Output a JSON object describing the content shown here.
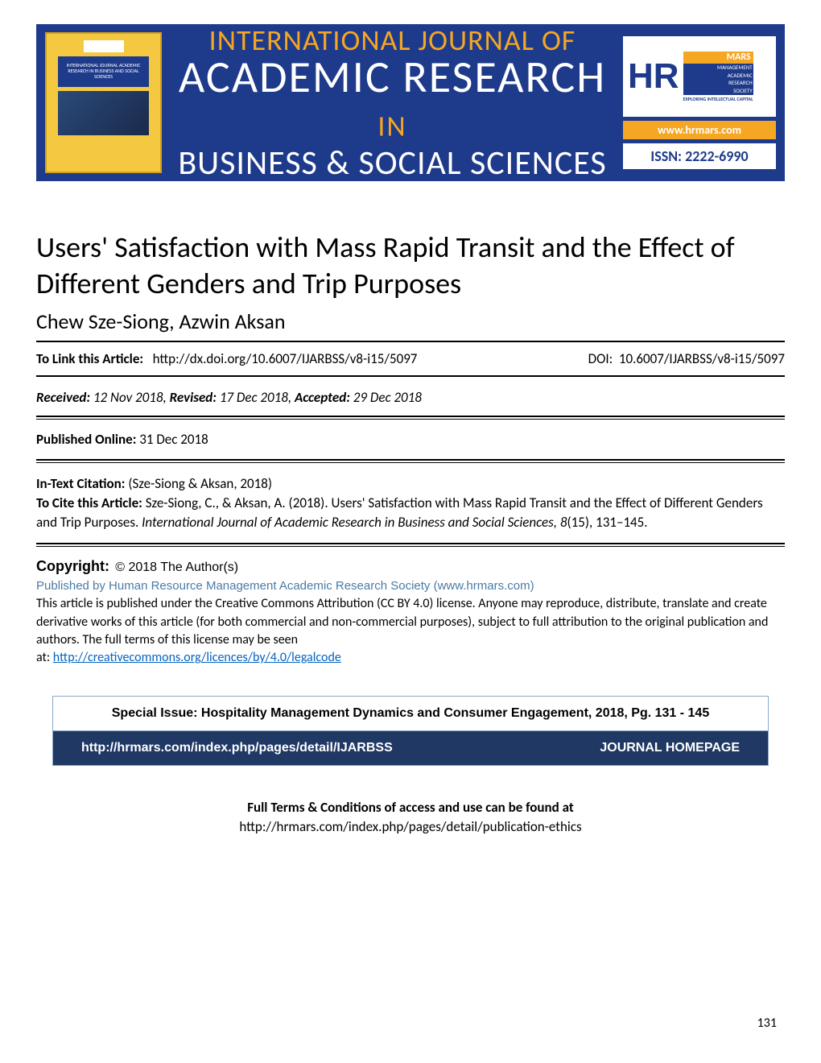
{
  "banner": {
    "line1": "INTERNATIONAL JOURNAL OF",
    "line2_main": "ACADEMIC RESEARCH",
    "line2_suffix": "IN",
    "line3": "BUSINESS & SOCIAL SCIENCES",
    "cover_title": "INTERNATIONAL JOURNAL ACADEMIC RESEARCH IN BUSINESS AND SOCIAL SCIENCES",
    "hr": "HR",
    "mars": "MARS",
    "mars_sub1": "MANAGEMENT",
    "mars_sub2": "ACADEMIC",
    "mars_sub3": "RESEARCH",
    "mars_sub4": "SOCIETY",
    "mars_tag": "EXPLORING INTELLECTUAL CAPITAL",
    "url": "www.hrmars.com",
    "issn": "ISSN: 2222-6990"
  },
  "article": {
    "title": "Users' Satisfaction with Mass Rapid Transit and the Effect of Different Genders and Trip Purposes",
    "authors": "Chew Sze-Siong, Azwin Aksan"
  },
  "link": {
    "label": "To Link this Article:",
    "url": "http://dx.doi.org/10.6007/IJARBSS/v8-i15/5097",
    "doi_label": "DOI:",
    "doi": "10.6007/IJARBSS/v8-i15/5097"
  },
  "dates": {
    "received_label": "Received:",
    "received": "12 Nov 2018,",
    "revised_label": "Revised:",
    "revised": "17 Dec 2018,",
    "accepted_label": "Accepted:",
    "accepted": "29 Dec 2018"
  },
  "published": {
    "label": "Published Online:",
    "date": "31 Dec 2018"
  },
  "citation": {
    "intext_label": "In-Text Citation:",
    "intext": "(Sze-Siong & Aksan, 2018)",
    "cite_label": "To Cite this Article:",
    "cite_text": "Sze-Siong, C., & Aksan, A. (2018). Users' Satisfaction with Mass Rapid Transit and the Effect of Different Genders and Trip Purposes.",
    "journal": "International Journal of Academic Research in Business and Social Sciences",
    "vol": ", 8",
    "issue_pages": "(15), 131–145."
  },
  "copyright": {
    "label": "Copyright:",
    "year": "© 2018 The Author(s)",
    "publisher": "Published by Human Resource Management Academic Research Society (www.hrmars.com)",
    "text": "This article is published under the Creative Commons Attribution (CC BY 4.0) license. Anyone may reproduce, distribute, translate and create derivative works of this article (for both commercial and non-commercial purposes), subject to full attribution to the original publication and authors. The full terms of this license may be seen",
    "at": "at:",
    "link": "http://creativecommons.org/licences/by/4.0/legalcode"
  },
  "special": {
    "header": "Special Issue:  Hospitality Management Dynamics and Consumer Engagement, 2018, Pg. 131 - 145",
    "url": "http://hrmars.com/index.php/pages/detail/IJARBSS",
    "homepage": "JOURNAL HOMEPAGE"
  },
  "terms": {
    "label": "Full Terms & Conditions of access and use can be found at",
    "url": "http://hrmars.com/index.php/pages/detail/publication-ethics"
  },
  "page_number": "131"
}
